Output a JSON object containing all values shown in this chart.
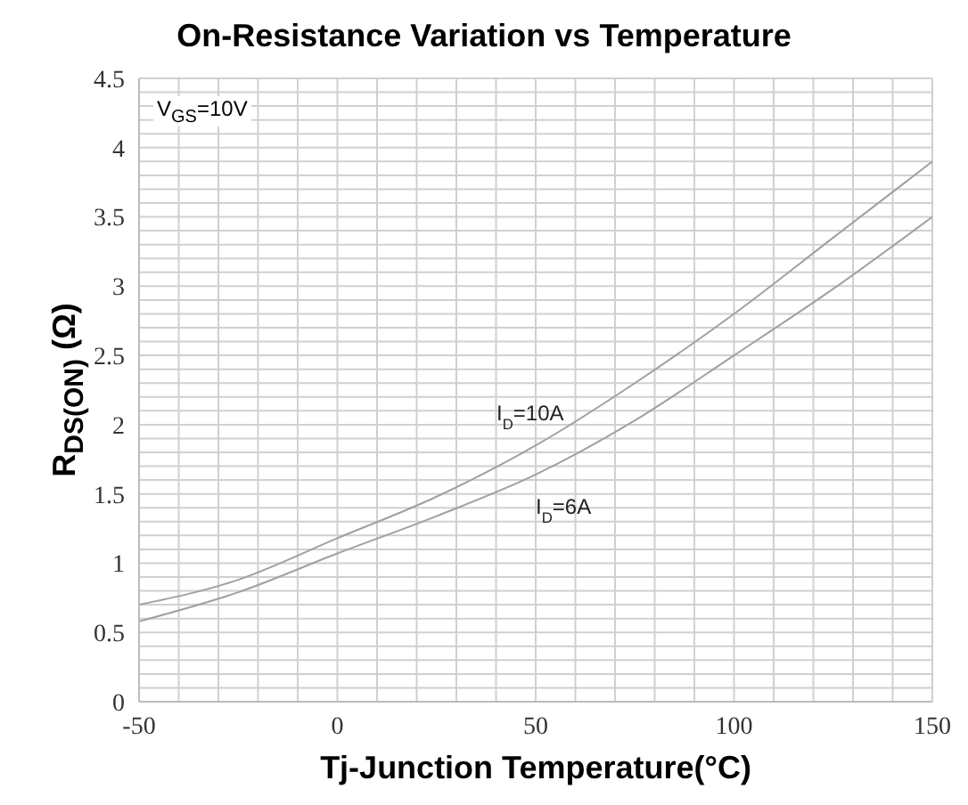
{
  "chart_data": {
    "type": "line",
    "title": "On-Resistance Variation vs Temperature",
    "xlabel": "Tj-Junction Temperature(°C)",
    "ylabel": "R$_{DS(ON)}$ (Ω)",
    "annotations": [
      "V$_{GS}$=10V"
    ],
    "x": [
      -50,
      -25,
      0,
      25,
      50,
      75,
      100,
      125,
      150
    ],
    "series": [
      {
        "name": "I$_{D}$=10A",
        "color": "#a0a0a0",
        "values": [
          0.7,
          0.88,
          1.18,
          1.48,
          1.85,
          2.3,
          2.8,
          3.35,
          3.9
        ]
      },
      {
        "name": "I$_{D}$=6A",
        "color": "#a0a0a0",
        "values": [
          0.58,
          0.79,
          1.07,
          1.34,
          1.64,
          2.03,
          2.5,
          2.98,
          3.5
        ]
      }
    ],
    "xlim": [
      -50,
      150
    ],
    "xticks": [
      -50,
      {
        "value": -40,
        "label": null
      },
      {
        "value": -30,
        "label": null
      },
      {
        "value": -20,
        "label": null
      },
      {
        "value": -10,
        "label": null
      },
      0,
      {
        "value": 10,
        "label": null
      },
      {
        "value": 20,
        "label": null
      },
      {
        "value": 30,
        "label": null
      },
      {
        "value": 40,
        "label": null
      },
      50,
      {
        "value": 60,
        "label": null
      },
      {
        "value": 70,
        "label": null
      },
      {
        "value": 80,
        "label": null
      },
      {
        "value": 90,
        "label": null
      },
      100,
      {
        "value": 110,
        "label": null
      },
      {
        "value": 120,
        "label": null
      },
      {
        "value": 130,
        "label": null
      },
      {
        "value": 140,
        "label": null
      },
      150
    ],
    "ylim": [
      0,
      4.5
    ],
    "yticks": [
      0,
      {
        "value": 0.1,
        "label": null
      },
      {
        "value": 0.2,
        "label": null
      },
      {
        "value": 0.3,
        "label": null
      },
      {
        "value": 0.4,
        "label": null
      },
      0.5,
      {
        "value": 0.6,
        "label": null
      },
      {
        "value": 0.7,
        "label": null
      },
      {
        "value": 0.8,
        "label": null
      },
      {
        "value": 0.9,
        "label": null
      },
      1,
      {
        "value": 1.1,
        "label": null
      },
      {
        "value": 1.2,
        "label": null
      },
      {
        "value": 1.3,
        "label": null
      },
      {
        "value": 1.4,
        "label": null
      },
      1.5,
      {
        "value": 1.6,
        "label": null
      },
      {
        "value": 1.7,
        "label": null
      },
      {
        "value": 1.8,
        "label": null
      },
      {
        "value": 1.9,
        "label": null
      },
      2,
      {
        "value": 2.1,
        "label": null
      },
      {
        "value": 2.2,
        "label": null
      },
      {
        "value": 2.3,
        "label": null
      },
      {
        "value": 2.4,
        "label": null
      },
      2.5,
      {
        "value": 2.6,
        "label": null
      },
      {
        "value": 2.7,
        "label": null
      },
      {
        "value": 2.8,
        "label": null
      },
      {
        "value": 2.9,
        "label": null
      },
      3,
      {
        "value": 3.1,
        "label": null
      },
      {
        "value": 3.2,
        "label": null
      },
      {
        "value": 3.3,
        "label": null
      },
      {
        "value": 3.4,
        "label": null
      },
      3.5,
      {
        "value": 3.6,
        "label": null
      },
      {
        "value": 3.7,
        "label": null
      },
      {
        "value": 3.8,
        "label": null
      },
      {
        "value": 3.9,
        "label": null
      },
      4,
      {
        "value": 4.1,
        "label": null
      },
      {
        "value": 4.2,
        "label": null
      },
      {
        "value": 4.3,
        "label": null
      },
      {
        "value": 4.4,
        "label": null
      },
      4.5
    ],
    "grid": true,
    "legend": false,
    "marker": "none",
    "line_style": "solid"
  }
}
